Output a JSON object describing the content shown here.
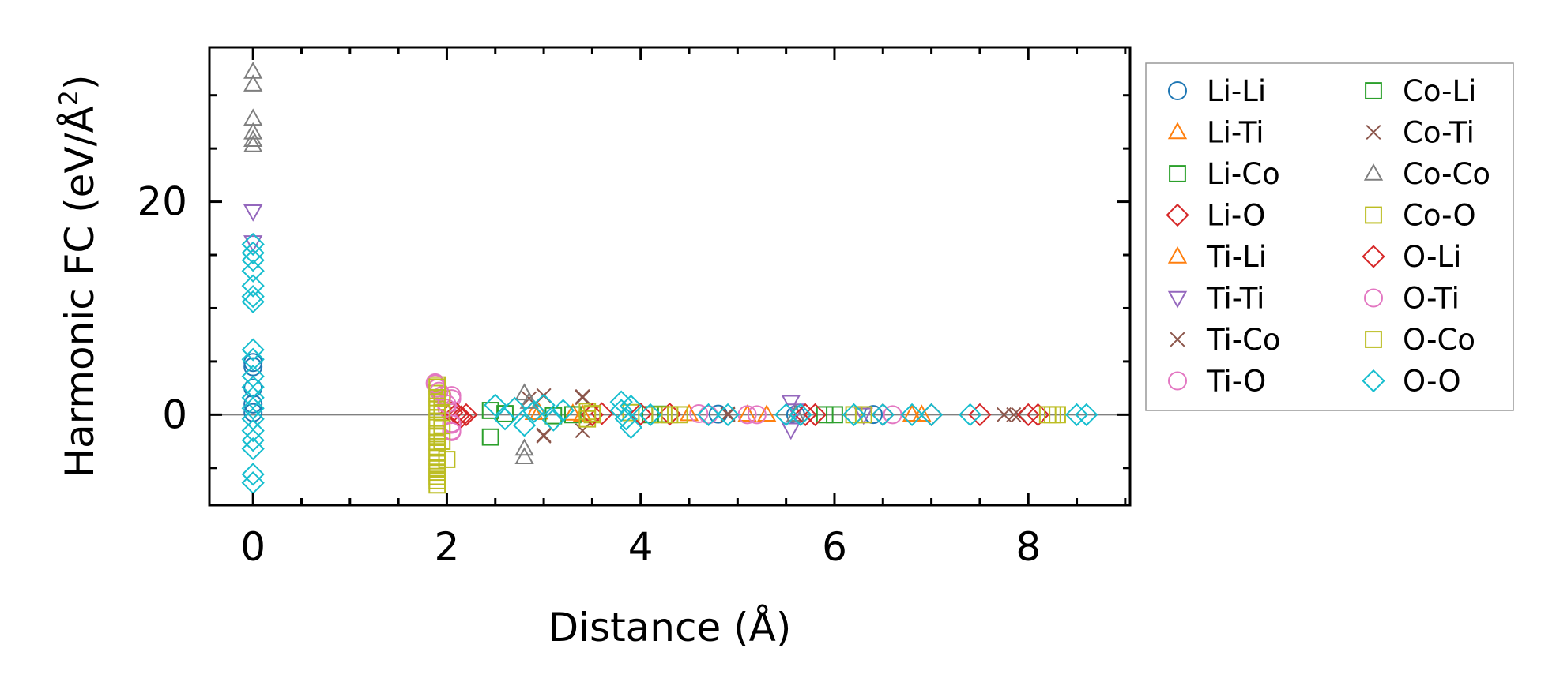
{
  "chart_data": {
    "type": "scatter",
    "title": "",
    "xlabel": "Distance (Å)",
    "ylabel_main": "Harmonic FC (eV/Å",
    "ylabel_sup": "2",
    "ylabel_close": ")",
    "xlim": [
      -0.45,
      9.05
    ],
    "ylim": [
      -8.5,
      34.5
    ],
    "xticks": [
      0,
      2,
      4,
      6,
      8
    ],
    "yticks": [
      0,
      20
    ],
    "xtick_labels": [
      "0",
      "2",
      "4",
      "6",
      "8"
    ],
    "ytick_labels": [
      "0",
      "20"
    ],
    "x_minor_step": 0.5,
    "y_minor_step": 5,
    "zero_line": true,
    "grid": false,
    "legend_position": "outside-right",
    "series": [
      {
        "name": "Li-Li",
        "marker": "circle",
        "color": "#1f77b4",
        "points": [
          [
            0,
            4.9
          ],
          [
            0,
            4.5
          ],
          [
            0,
            2.5
          ],
          [
            0,
            1.0
          ],
          [
            0,
            0.2
          ],
          [
            4.8,
            0.05
          ],
          [
            5.6,
            0.0
          ],
          [
            6.4,
            0.02
          ]
        ]
      },
      {
        "name": "Li-Ti",
        "marker": "triangle-up",
        "color": "#ff7f0e",
        "points": [
          [
            2.95,
            0.2
          ],
          [
            3.3,
            0.1
          ],
          [
            4.5,
            0.05
          ],
          [
            5.3,
            0.0
          ],
          [
            6.9,
            0.0
          ]
        ]
      },
      {
        "name": "Li-Co",
        "marker": "square",
        "color": "#2ca02c",
        "points": [
          [
            2.6,
            0.1
          ],
          [
            3.1,
            -0.1
          ],
          [
            4.2,
            0.05
          ],
          [
            5.9,
            0.0
          ]
        ]
      },
      {
        "name": "Li-O",
        "marker": "diamond",
        "color": "#d62728",
        "points": [
          [
            2.05,
            0.2
          ],
          [
            2.12,
            -0.1
          ],
          [
            2.2,
            0.0
          ],
          [
            3.6,
            0.1
          ],
          [
            4.3,
            0.05
          ],
          [
            5.8,
            0.0
          ],
          [
            6.5,
            0.0
          ],
          [
            7.5,
            0.0
          ],
          [
            8.1,
            0.0
          ]
        ]
      },
      {
        "name": "Ti-Li",
        "marker": "triangle-up",
        "color": "#ff7f0e",
        "points": [
          [
            2.9,
            0.15
          ],
          [
            3.4,
            0.0
          ],
          [
            5.1,
            0.0
          ],
          [
            6.8,
            0.0
          ]
        ]
      },
      {
        "name": "Ti-Ti",
        "marker": "triangle-down",
        "color": "#9467bd",
        "points": [
          [
            0,
            19.1
          ],
          [
            0,
            16.2
          ],
          [
            5.55,
            1.2
          ],
          [
            5.55,
            -1.4
          ],
          [
            5.6,
            0.4
          ],
          [
            6.3,
            0.0
          ]
        ]
      },
      {
        "name": "Ti-Co",
        "marker": "x",
        "color": "#8c564b",
        "points": [
          [
            2.85,
            1.5
          ],
          [
            3.0,
            1.8
          ],
          [
            3.0,
            -2.0
          ],
          [
            3.4,
            1.7
          ],
          [
            3.4,
            -1.5
          ],
          [
            4.9,
            0.1
          ],
          [
            7.75,
            0.0
          ],
          [
            7.85,
            0.0
          ]
        ]
      },
      {
        "name": "Ti-O",
        "marker": "circle",
        "color": "#e377c2",
        "points": [
          [
            1.88,
            3.0
          ],
          [
            1.9,
            2.5
          ],
          [
            1.95,
            1.8
          ],
          [
            2.0,
            0.6
          ],
          [
            2.05,
            1.5
          ],
          [
            2.05,
            -1.5
          ],
          [
            2.05,
            -0.8
          ],
          [
            4.6,
            0.1
          ],
          [
            5.2,
            0.0
          ],
          [
            6.6,
            0.0
          ]
        ]
      },
      {
        "name": "Co-Li",
        "marker": "square",
        "color": "#2ca02c",
        "points": [
          [
            2.45,
            0.4
          ],
          [
            2.45,
            -2.1
          ],
          [
            3.3,
            0.0
          ],
          [
            4.1,
            0.0
          ],
          [
            6.0,
            0.0
          ]
        ]
      },
      {
        "name": "Co-Ti",
        "marker": "x",
        "color": "#8c564b",
        "points": [
          [
            3.0,
            -1.9
          ],
          [
            3.4,
            1.6
          ],
          [
            4.9,
            0.0
          ],
          [
            7.9,
            0.0
          ]
        ]
      },
      {
        "name": "Co-Co",
        "marker": "triangle-up",
        "color": "#7f7f7f",
        "points": [
          [
            0,
            32.2
          ],
          [
            0,
            31.0
          ],
          [
            0,
            27.8
          ],
          [
            0,
            26.5
          ],
          [
            0,
            25.8
          ],
          [
            0,
            25.3
          ],
          [
            2.8,
            2.0
          ],
          [
            2.8,
            -3.2
          ],
          [
            2.8,
            -4.0
          ],
          [
            2.85,
            1.2
          ],
          [
            5.6,
            0.0
          ]
        ]
      },
      {
        "name": "Co-O",
        "marker": "square",
        "color": "#bcbd22",
        "points": [
          [
            1.9,
            2.8
          ],
          [
            1.9,
            2.0
          ],
          [
            1.9,
            1.2
          ],
          [
            1.9,
            0.5
          ],
          [
            1.9,
            -0.3
          ],
          [
            1.9,
            -1.2
          ],
          [
            1.9,
            -2.0
          ],
          [
            1.9,
            -3.0
          ],
          [
            1.9,
            -4.0
          ],
          [
            1.9,
            -5.0
          ],
          [
            1.9,
            -5.8
          ],
          [
            1.9,
            -6.6
          ],
          [
            1.95,
            1.5
          ],
          [
            1.95,
            -1.0
          ],
          [
            1.95,
            -2.5
          ],
          [
            2.0,
            -4.2
          ],
          [
            3.45,
            0.3
          ],
          [
            3.45,
            -0.4
          ],
          [
            3.5,
            0.0
          ],
          [
            3.9,
            0.2
          ],
          [
            4.2,
            0.0
          ],
          [
            4.4,
            0.0
          ],
          [
            6.2,
            0.0
          ],
          [
            8.2,
            0.0
          ],
          [
            8.3,
            0.0
          ]
        ]
      },
      {
        "name": "O-Li",
        "marker": "diamond",
        "color": "#d62728",
        "points": [
          [
            2.1,
            0.1
          ],
          [
            2.15,
            -0.2
          ],
          [
            3.5,
            0.0
          ],
          [
            4.0,
            0.05
          ],
          [
            5.7,
            0.0
          ],
          [
            7.0,
            0.0
          ],
          [
            8.0,
            0.0
          ]
        ]
      },
      {
        "name": "O-Ti",
        "marker": "circle",
        "color": "#e377c2",
        "points": [
          [
            1.88,
            2.9
          ],
          [
            1.92,
            2.2
          ],
          [
            2.0,
            1.0
          ],
          [
            2.05,
            1.8
          ],
          [
            2.05,
            -0.9
          ],
          [
            2.05,
            -1.6
          ],
          [
            4.7,
            0.0
          ],
          [
            5.1,
            0.0
          ]
        ]
      },
      {
        "name": "O-Co",
        "marker": "square",
        "color": "#bcbd22",
        "points": [
          [
            1.9,
            2.6
          ],
          [
            1.9,
            1.6
          ],
          [
            1.9,
            0.8
          ],
          [
            1.9,
            -0.6
          ],
          [
            1.9,
            -1.8
          ],
          [
            1.9,
            -2.6
          ],
          [
            1.9,
            -3.6
          ],
          [
            1.9,
            -4.6
          ],
          [
            1.9,
            -5.4
          ],
          [
            1.9,
            -6.2
          ],
          [
            1.95,
            0.2
          ],
          [
            3.5,
            0.1
          ],
          [
            4.3,
            0.0
          ],
          [
            6.3,
            0.0
          ],
          [
            8.25,
            0.0
          ]
        ]
      },
      {
        "name": "O-O",
        "marker": "diamond",
        "color": "#17becf",
        "points": [
          [
            0,
            16.0
          ],
          [
            0,
            15.2
          ],
          [
            0,
            14.5
          ],
          [
            0,
            13.5
          ],
          [
            0,
            12.1
          ],
          [
            0,
            11.1
          ],
          [
            0,
            10.6
          ],
          [
            0,
            6.1
          ],
          [
            0,
            5.2
          ],
          [
            0,
            3.6
          ],
          [
            0,
            2.6
          ],
          [
            0,
            1.6
          ],
          [
            0,
            0.6
          ],
          [
            0,
            -0.4
          ],
          [
            0,
            -1.5
          ],
          [
            0,
            -2.4
          ],
          [
            0,
            -3.2
          ],
          [
            0,
            -5.6
          ],
          [
            0,
            -6.4
          ],
          [
            2.5,
            0.9
          ],
          [
            2.6,
            -0.4
          ],
          [
            2.7,
            0.6
          ],
          [
            2.8,
            -1.0
          ],
          [
            2.9,
            0.3
          ],
          [
            3.0,
            0.9
          ],
          [
            3.1,
            -0.5
          ],
          [
            3.2,
            0.4
          ],
          [
            3.8,
            1.2
          ],
          [
            3.8,
            0.4
          ],
          [
            3.85,
            -0.4
          ],
          [
            3.9,
            -1.2
          ],
          [
            3.9,
            0.8
          ],
          [
            4.1,
            0.0
          ],
          [
            4.7,
            0.0
          ],
          [
            4.9,
            0.0
          ],
          [
            5.5,
            0.0
          ],
          [
            5.65,
            0.0
          ],
          [
            6.2,
            0.0
          ],
          [
            6.5,
            0.0
          ],
          [
            6.8,
            0.0
          ],
          [
            7.0,
            0.0
          ],
          [
            7.4,
            0.0
          ],
          [
            8.5,
            0.0
          ],
          [
            8.6,
            0.0
          ]
        ]
      }
    ]
  }
}
